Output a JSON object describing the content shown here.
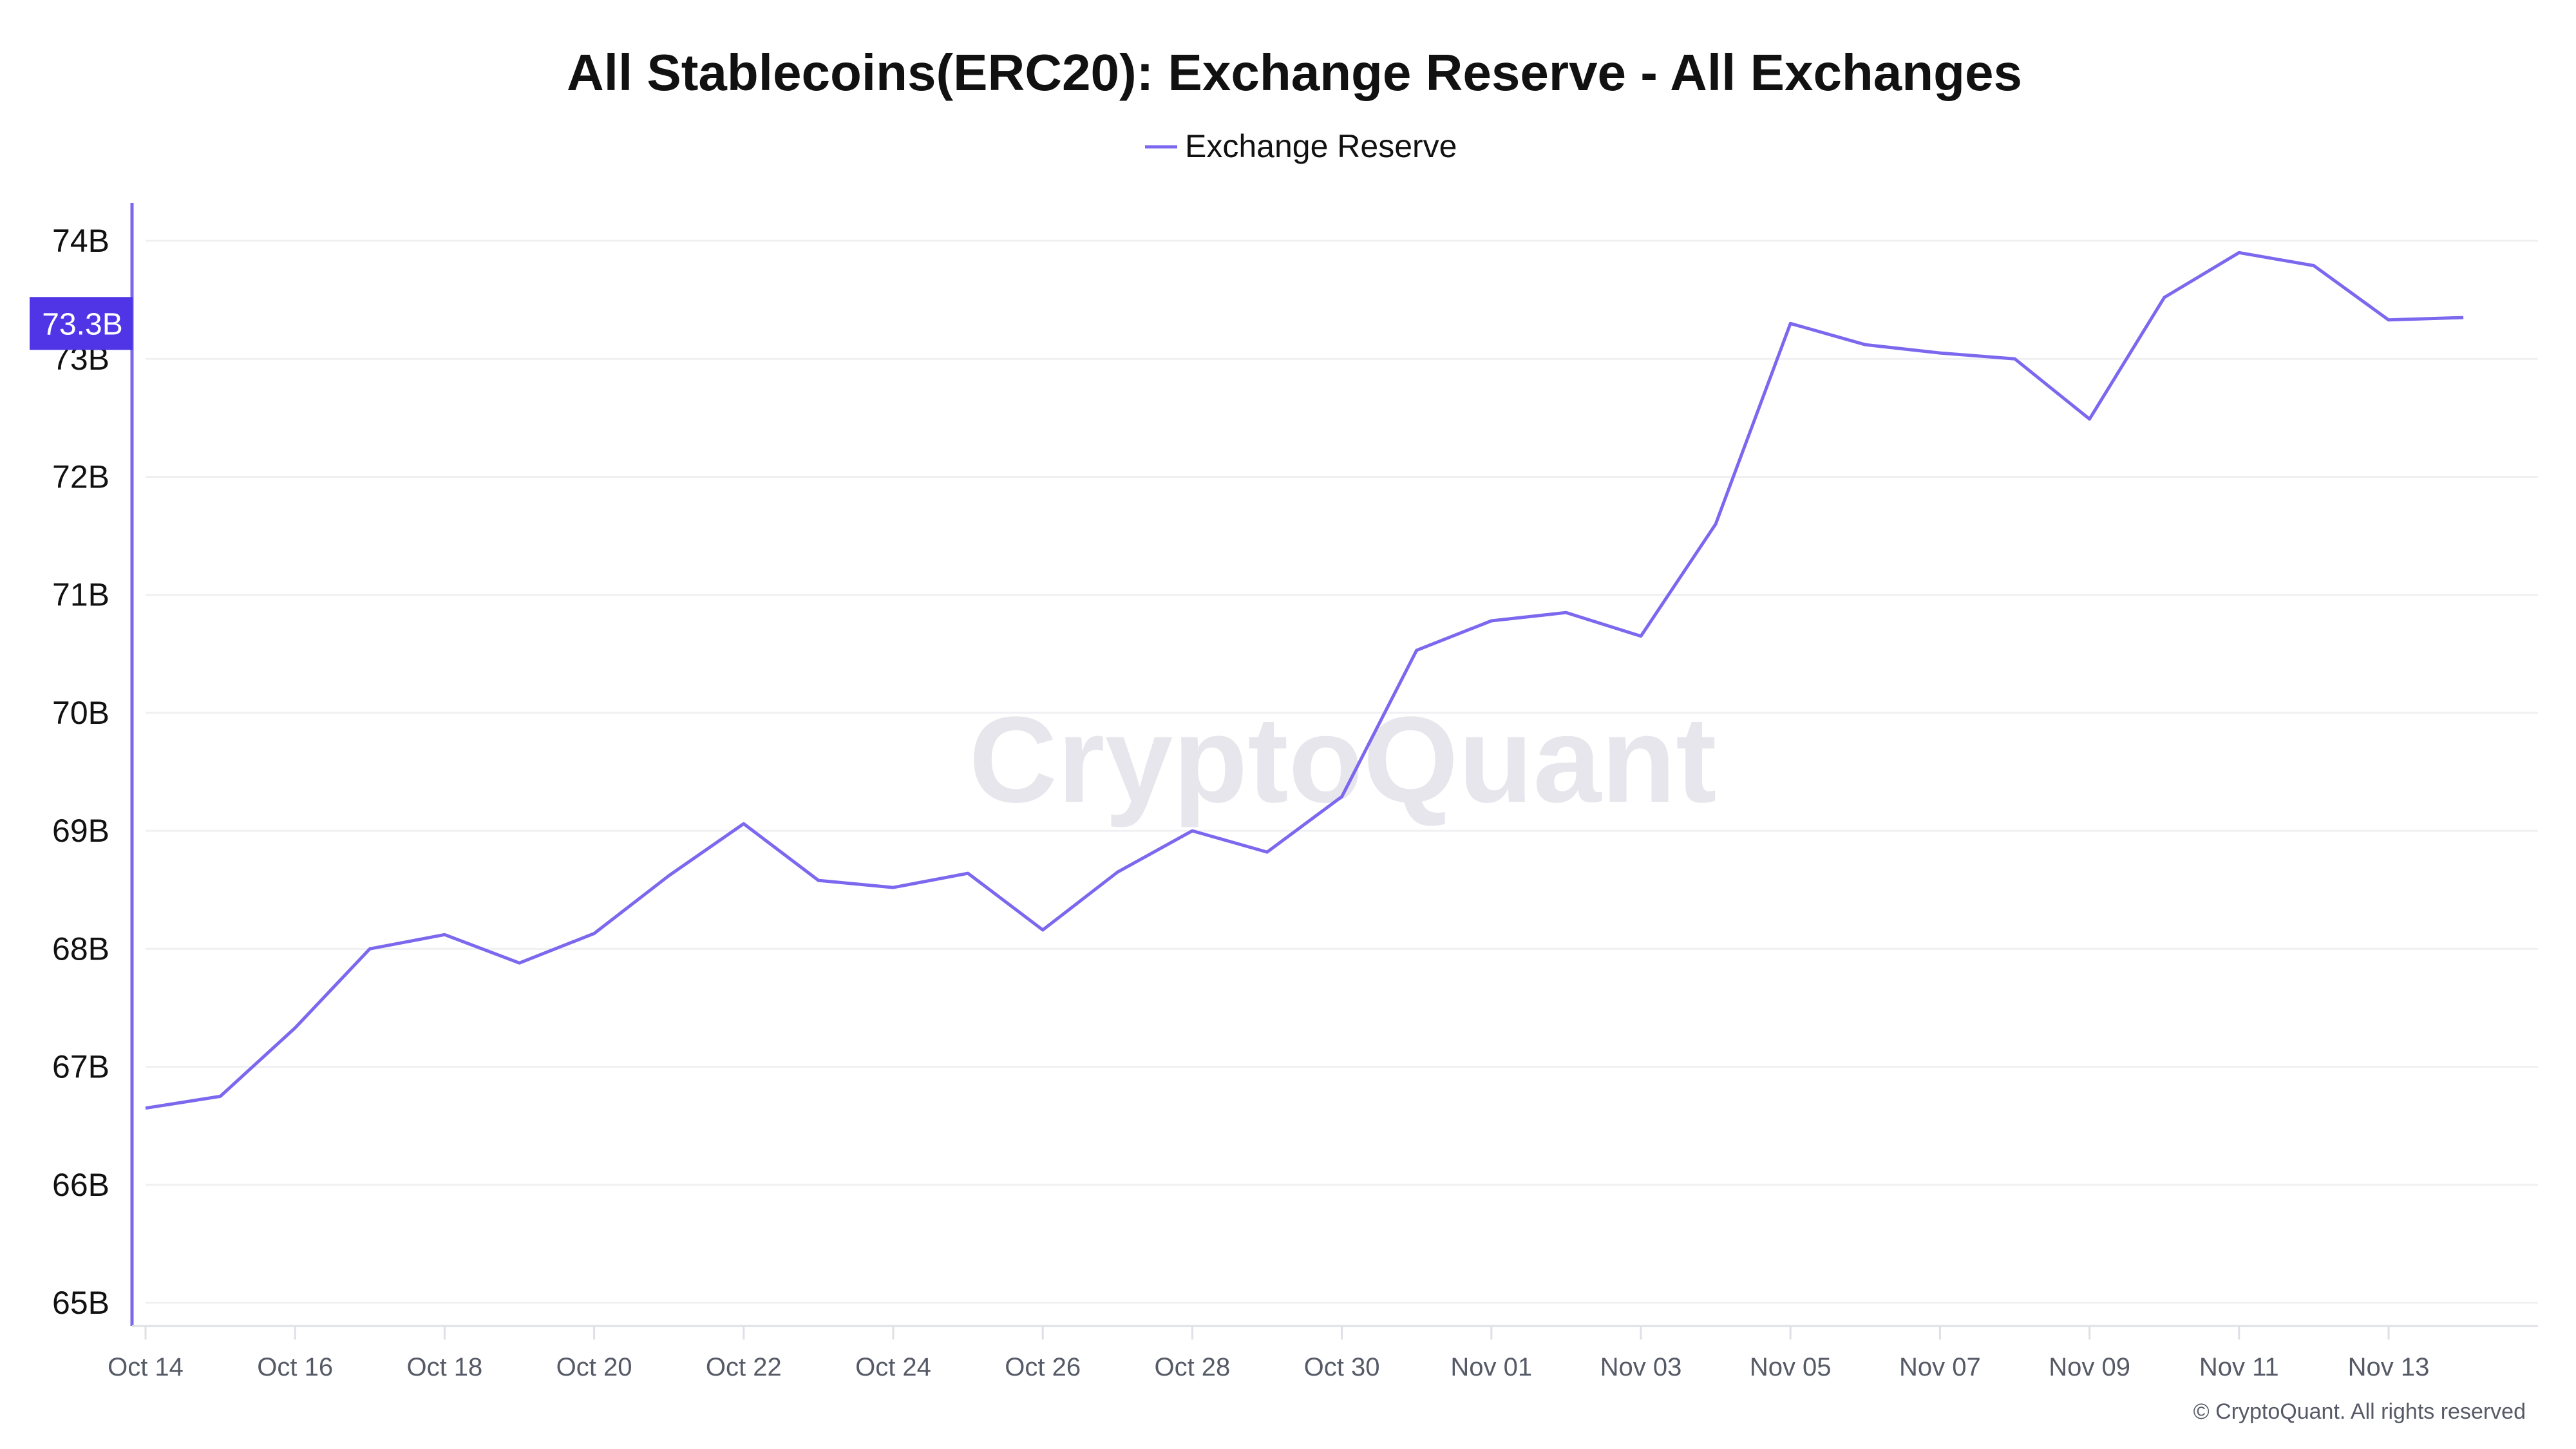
{
  "chart_data": {
    "type": "line",
    "title": "All Stablecoins(ERC20): Exchange Reserve - All Exchanges",
    "legend": {
      "placement": "top-center",
      "entries": [
        "Exchange Reserve"
      ]
    },
    "x": [
      "Oct 14",
      "Oct 15",
      "Oct 16",
      "Oct 17",
      "Oct 18",
      "Oct 19",
      "Oct 20",
      "Oct 21",
      "Oct 22",
      "Oct 23",
      "Oct 24",
      "Oct 25",
      "Oct 26",
      "Oct 27",
      "Oct 28",
      "Oct 29",
      "Oct 30",
      "Oct 31",
      "Nov 01",
      "Nov 02",
      "Nov 03",
      "Nov 04",
      "Nov 05",
      "Nov 06",
      "Nov 07",
      "Nov 08",
      "Nov 09",
      "Nov 10",
      "Nov 11",
      "Nov 12",
      "Nov 13",
      "Nov 14"
    ],
    "series": [
      {
        "name": "Exchange Reserve",
        "color": "#7b68ee",
        "values": [
          66.65,
          66.75,
          67.33,
          68.0,
          68.12,
          67.88,
          68.13,
          68.62,
          69.06,
          68.58,
          68.52,
          68.64,
          68.16,
          68.65,
          69.0,
          68.82,
          69.29,
          70.53,
          70.78,
          70.85,
          70.65,
          71.6,
          73.3,
          73.12,
          73.05,
          73.0,
          72.49,
          73.52,
          73.9,
          73.79,
          73.33,
          73.35
        ]
      }
    ],
    "unit": "B",
    "x_tick_labels": [
      "Oct 14",
      "Oct 16",
      "Oct 18",
      "Oct 20",
      "Oct 22",
      "Oct 24",
      "Oct 26",
      "Oct 28",
      "Oct 30",
      "Nov 01",
      "Nov 03",
      "Nov 05",
      "Nov 07",
      "Nov 09",
      "Nov 11",
      "Nov 13"
    ],
    "y_tick_labels": [
      "65B",
      "66B",
      "67B",
      "68B",
      "69B",
      "70B",
      "71B",
      "72B",
      "73B",
      "74B"
    ],
    "y_ticks": [
      65,
      66,
      67,
      68,
      69,
      70,
      71,
      72,
      73,
      74
    ],
    "ylim": [
      65,
      74
    ],
    "grid": true,
    "current_value_label": "73.3B",
    "current_value": 73.3,
    "accent_color": "#4f35e6"
  },
  "watermark": "CryptoQuant",
  "copyright": "© CryptoQuant. All rights reserved"
}
